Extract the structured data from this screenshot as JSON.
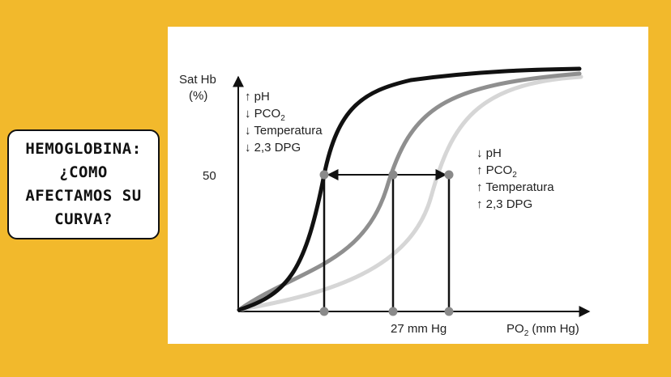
{
  "title_lines": [
    "HEMOGLOBINA:",
    "¿COMO",
    "AFECTAMOS SU",
    "CURVA?"
  ],
  "diagram": {
    "y_label_line1": "Sat Hb",
    "y_label_line2": "(%)",
    "y_tick": "50",
    "x_tick": "27 mm Hg",
    "x_label_main": "PO",
    "x_label_sub": "2",
    "x_label_rest": " (mm Hg)",
    "left_block": [
      {
        "arrow": "↑",
        "main": "pH",
        "sub": ""
      },
      {
        "arrow": "↓",
        "main": "PCO",
        "sub": "2"
      },
      {
        "arrow": "↓",
        "main": "Temperatura",
        "sub": ""
      },
      {
        "arrow": "↓",
        "main": "2,3 DPG",
        "sub": ""
      }
    ],
    "right_block": [
      {
        "arrow": "↓",
        "main": "pH",
        "sub": ""
      },
      {
        "arrow": "↑",
        "main": "PCO",
        "sub": "2"
      },
      {
        "arrow": "↑",
        "main": "Temperatura",
        "sub": ""
      },
      {
        "arrow": "↑",
        "main": "2,3 DPG",
        "sub": ""
      }
    ],
    "colors": {
      "left_curve": "#111111",
      "middle_curve": "#8f8f8f",
      "right_curve": "#d6d6d6",
      "marker": "#8a8a8a"
    }
  }
}
